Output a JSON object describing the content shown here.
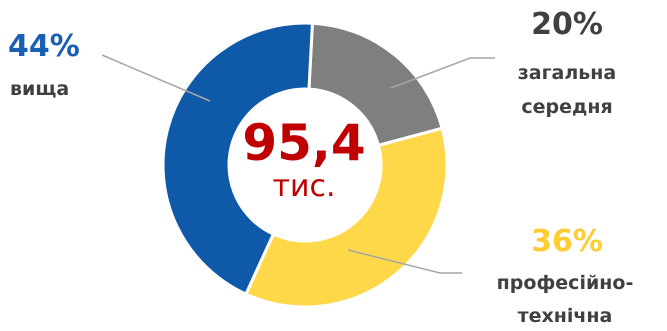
{
  "chart_data": {
    "type": "pie",
    "variant": "donut",
    "center": {
      "value": "95,4",
      "unit": "тис."
    },
    "slices": [
      {
        "value": 20,
        "pct_label": "20%",
        "label_lines": [
          "загальна",
          "середня"
        ],
        "color": "#7f7f7f"
      },
      {
        "value": 36,
        "pct_label": "36%",
        "label_lines": [
          "професійно-",
          "технічна"
        ],
        "color": "#ffd84a"
      },
      {
        "value": 44,
        "pct_label": "44%",
        "label_lines": [
          "вища"
        ],
        "color": "#0f5aa8"
      }
    ]
  },
  "colors": {
    "center_text": "#c00000",
    "pct_20": "#404040",
    "pct_36": "#ffcc33",
    "pct_44": "#1a5fb4",
    "leader": "#a6a6a6"
  }
}
